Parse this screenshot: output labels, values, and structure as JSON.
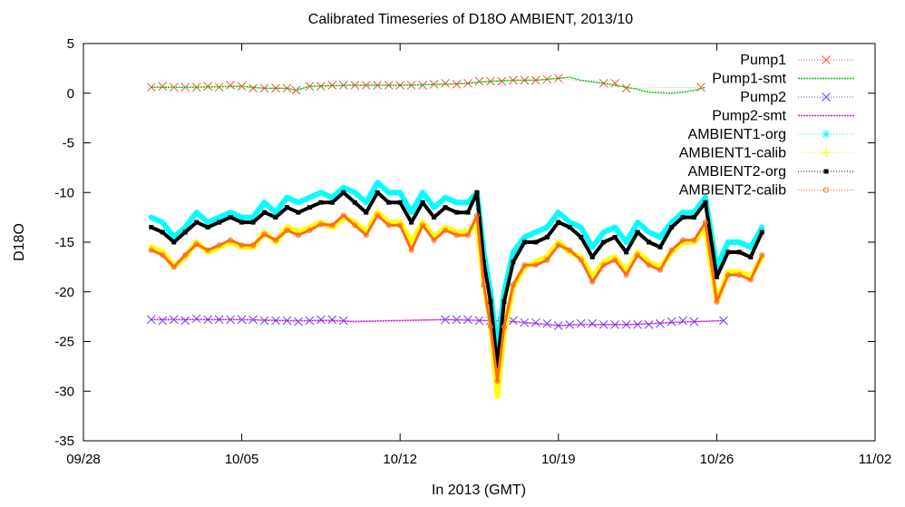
{
  "chart_data": {
    "type": "line",
    "title": "Calibrated Timeseries of D18O AMBIENT, 2013/10",
    "xlabel": "In 2013 (GMT)",
    "ylabel": "D18O",
    "xlim": [
      "2013-09-28",
      "2013-11-02"
    ],
    "ylim": [
      -35,
      5
    ],
    "x_ticks": [
      "09/28",
      "10/05",
      "10/12",
      "10/19",
      "10/26",
      "11/02"
    ],
    "y_ticks": [
      -35,
      -30,
      -25,
      -20,
      -15,
      -10,
      -5,
      0,
      5
    ],
    "grid": false,
    "legend_position": "top-right",
    "series": [
      {
        "name": "Pump1",
        "color": "#ff4a3a",
        "marker": "x",
        "x": [
          "2013-10-01",
          "2013-10-01.5",
          "2013-10-02",
          "2013-10-02.5",
          "2013-10-03",
          "2013-10-03.5",
          "2013-10-04",
          "2013-10-04.5",
          "2013-10-05",
          "2013-10-05.5",
          "2013-10-06",
          "2013-10-06.5",
          "2013-10-07",
          "2013-10-07.4",
          "2013-10-08",
          "2013-10-08.5",
          "2013-10-09",
          "2013-10-09.5",
          "2013-10-10",
          "2013-10-10.5",
          "2013-10-11",
          "2013-10-11.5",
          "2013-10-12",
          "2013-10-12.5",
          "2013-10-13",
          "2013-10-13.5",
          "2013-10-14",
          "2013-10-14.5",
          "2013-10-15",
          "2013-10-15.5",
          "2013-10-16",
          "2013-10-16.5",
          "2013-10-17",
          "2013-10-17.5",
          "2013-10-18",
          "2013-10-18.5",
          "2013-10-19",
          "2013-10-21",
          "2013-10-21.5",
          "2013-10-22",
          "2013-10-25.3"
        ],
        "values": [
          0.6,
          0.7,
          0.6,
          0.6,
          0.6,
          0.7,
          0.6,
          0.8,
          0.7,
          0.5,
          0.5,
          0.5,
          0.5,
          0.3,
          0.7,
          0.7,
          0.8,
          0.8,
          0.8,
          0.8,
          0.8,
          0.8,
          0.8,
          0.8,
          0.8,
          0.9,
          1.0,
          0.9,
          1.0,
          1.2,
          1.2,
          1.2,
          1.3,
          1.3,
          1.3,
          1.4,
          1.5,
          1.0,
          1.0,
          0.5,
          0.6
        ]
      },
      {
        "name": "Pump1-smt",
        "color": "#00c800",
        "marker": "none",
        "x": [
          "2013-10-01",
          "2013-10-03",
          "2013-10-05",
          "2013-10-06",
          "2013-10-07",
          "2013-10-07.4",
          "2013-10-08",
          "2013-10-10",
          "2013-10-12",
          "2013-10-14",
          "2013-10-15",
          "2013-10-16",
          "2013-10-17",
          "2013-10-18",
          "2013-10-19",
          "2013-10-19.5",
          "2013-10-20",
          "2013-10-21",
          "2013-10-22",
          "2013-10-22.5",
          "2013-10-23",
          "2013-10-24",
          "2013-10-24.5",
          "2013-10-25",
          "2013-10-25.5"
        ],
        "values": [
          0.6,
          0.6,
          0.7,
          0.5,
          0.5,
          0.3,
          0.7,
          0.8,
          0.8,
          0.9,
          1.0,
          1.2,
          1.3,
          1.3,
          1.5,
          1.6,
          1.3,
          1.0,
          0.6,
          0.4,
          0.1,
          0.0,
          0.1,
          0.3,
          0.6
        ]
      },
      {
        "name": "Pump2",
        "color": "#4d4dff",
        "marker": "x",
        "x": [
          "2013-10-01",
          "2013-10-01.5",
          "2013-10-02",
          "2013-10-02.5",
          "2013-10-03",
          "2013-10-03.5",
          "2013-10-04",
          "2013-10-04.5",
          "2013-10-05",
          "2013-10-05.5",
          "2013-10-06",
          "2013-10-06.5",
          "2013-10-07",
          "2013-10-07.5",
          "2013-10-08",
          "2013-10-08.5",
          "2013-10-09",
          "2013-10-09.5",
          "2013-10-14",
          "2013-10-14.5",
          "2013-10-15",
          "2013-10-15.5",
          "2013-10-16",
          "2013-10-16.5",
          "2013-10-17",
          "2013-10-17.5",
          "2013-10-18",
          "2013-10-18.5",
          "2013-10-19",
          "2013-10-19.5",
          "2013-10-20",
          "2013-10-20.5",
          "2013-10-21",
          "2013-10-21.5",
          "2013-10-22",
          "2013-10-22.5",
          "2013-10-23",
          "2013-10-23.5",
          "2013-10-24",
          "2013-10-24.5",
          "2013-10-25",
          "2013-10-26.3"
        ],
        "values": [
          -22.8,
          -22.9,
          -22.8,
          -22.9,
          -22.7,
          -22.8,
          -22.8,
          -22.8,
          -22.8,
          -22.8,
          -22.9,
          -22.9,
          -22.9,
          -23.0,
          -22.9,
          -22.8,
          -22.8,
          -22.9,
          -22.8,
          -22.8,
          -22.8,
          -22.9,
          -22.9,
          -23.0,
          -22.9,
          -23.1,
          -23.1,
          -23.2,
          -23.4,
          -23.3,
          -23.2,
          -23.2,
          -23.3,
          -23.3,
          -23.3,
          -23.3,
          -23.3,
          -23.2,
          -23.0,
          -22.9,
          -23.0,
          -22.9
        ]
      },
      {
        "name": "Pump2-smt",
        "color": "#e600e6",
        "marker": "none",
        "x": [
          "2013-10-01",
          "2013-10-03",
          "2013-10-05",
          "2013-10-07",
          "2013-10-09",
          "2013-10-10",
          "2013-10-12",
          "2013-10-14",
          "2013-10-16",
          "2013-10-17",
          "2013-10-18",
          "2013-10-19",
          "2013-10-20",
          "2013-10-22",
          "2013-10-24",
          "2013-10-25",
          "2013-10-26.3"
        ],
        "values": [
          -22.8,
          -22.8,
          -22.8,
          -22.9,
          -22.9,
          -23.0,
          -22.9,
          -22.8,
          -22.9,
          -23.0,
          -23.2,
          -23.4,
          -23.3,
          -23.3,
          -23.1,
          -23.0,
          -22.9
        ]
      },
      {
        "name": "AMBIENT1-org",
        "color": "#00ffff",
        "marker": "star",
        "x": [
          "2013-10-01",
          "2013-10-01.5",
          "2013-10-02",
          "2013-10-02.5",
          "2013-10-03",
          "2013-10-03.5",
          "2013-10-04",
          "2013-10-04.5",
          "2013-10-05",
          "2013-10-05.5",
          "2013-10-06",
          "2013-10-06.5",
          "2013-10-07",
          "2013-10-07.5",
          "2013-10-08",
          "2013-10-08.5",
          "2013-10-09",
          "2013-10-09.5",
          "2013-10-10",
          "2013-10-10.5",
          "2013-10-11",
          "2013-10-11.5",
          "2013-10-12",
          "2013-10-12.5",
          "2013-10-13",
          "2013-10-13.5",
          "2013-10-14",
          "2013-10-14.5",
          "2013-10-15",
          "2013-10-15.4",
          "2013-10-15.7",
          "2013-10-16",
          "2013-10-16.3",
          "2013-10-16.6",
          "2013-10-17",
          "2013-10-17.5",
          "2013-10-18",
          "2013-10-18.5",
          "2013-10-19",
          "2013-10-19.5",
          "2013-10-20",
          "2013-10-20.5",
          "2013-10-21",
          "2013-10-21.5",
          "2013-10-22",
          "2013-10-22.5",
          "2013-10-23",
          "2013-10-23.5",
          "2013-10-24",
          "2013-10-24.5",
          "2013-10-25",
          "2013-10-25.5",
          "2013-10-26",
          "2013-10-26.5",
          "2013-10-27",
          "2013-10-27.5",
          "2013-10-28"
        ],
        "values": [
          -12.5,
          -13.0,
          -14.5,
          -13.5,
          -12.0,
          -13.0,
          -12.5,
          -12.0,
          -12.5,
          -12.5,
          -11.0,
          -12.0,
          -10.5,
          -11.0,
          -10.5,
          -10.0,
          -10.5,
          -9.5,
          -10.0,
          -11.0,
          -9.0,
          -10.0,
          -10.0,
          -12.0,
          -10.0,
          -11.5,
          -10.5,
          -11.0,
          -11.0,
          -10.0,
          -16.0,
          -20.0,
          -26.0,
          -20.0,
          -16.0,
          -14.5,
          -14.0,
          -13.5,
          -12.0,
          -13.0,
          -13.5,
          -15.5,
          -14.0,
          -13.5,
          -15.0,
          -13.0,
          -14.0,
          -14.5,
          -13.0,
          -12.0,
          -12.0,
          -10.5,
          -17.5,
          -15.0,
          -15.0,
          -15.5,
          -13.5
        ]
      },
      {
        "name": "AMBIENT1-calib",
        "color": "#ffff00",
        "marker": "plus",
        "x": [
          "2013-10-01",
          "2013-10-01.5",
          "2013-10-02",
          "2013-10-02.5",
          "2013-10-03",
          "2013-10-03.5",
          "2013-10-04",
          "2013-10-04.5",
          "2013-10-05",
          "2013-10-05.5",
          "2013-10-06",
          "2013-10-06.5",
          "2013-10-07",
          "2013-10-07.5",
          "2013-10-08",
          "2013-10-08.5",
          "2013-10-09",
          "2013-10-09.5",
          "2013-10-10",
          "2013-10-10.5",
          "2013-10-11",
          "2013-10-11.5",
          "2013-10-12",
          "2013-10-12.5",
          "2013-10-13",
          "2013-10-13.5",
          "2013-10-14",
          "2013-10-14.5",
          "2013-10-15",
          "2013-10-15.4",
          "2013-10-15.7",
          "2013-10-16",
          "2013-10-16.3",
          "2013-10-16.6",
          "2013-10-17",
          "2013-10-17.5",
          "2013-10-18",
          "2013-10-18.5",
          "2013-10-19",
          "2013-10-19.5",
          "2013-10-20",
          "2013-10-20.5",
          "2013-10-21",
          "2013-10-21.5",
          "2013-10-22",
          "2013-10-22.5",
          "2013-10-23",
          "2013-10-23.5",
          "2013-10-24",
          "2013-10-24.5",
          "2013-10-25",
          "2013-10-25.5",
          "2013-10-26",
          "2013-10-26.5",
          "2013-10-27",
          "2013-10-27.5",
          "2013-10-28"
        ],
        "values": [
          -15.5,
          -16.0,
          -17.5,
          -16.5,
          -15.0,
          -16.0,
          -15.5,
          -15.0,
          -15.5,
          -15.5,
          -14.0,
          -15.0,
          -13.5,
          -14.0,
          -13.5,
          -13.0,
          -13.5,
          -12.5,
          -13.0,
          -14.0,
          -12.0,
          -13.0,
          -13.0,
          -15.0,
          -13.0,
          -14.5,
          -13.5,
          -14.0,
          -14.0,
          -13.0,
          -19.0,
          -23.0,
          -30.5,
          -24.0,
          -19.5,
          -17.5,
          -17.0,
          -16.5,
          -15.0,
          -16.0,
          -16.5,
          -18.5,
          -17.0,
          -16.5,
          -18.0,
          -16.0,
          -17.0,
          -17.5,
          -16.0,
          -15.0,
          -15.0,
          -13.5,
          -21.0,
          -18.0,
          -18.0,
          -18.5,
          -16.5
        ]
      },
      {
        "name": "AMBIENT2-org",
        "color": "#000000",
        "marker": "square",
        "x": [
          "2013-10-01",
          "2013-10-01.5",
          "2013-10-02",
          "2013-10-02.5",
          "2013-10-03",
          "2013-10-03.5",
          "2013-10-04",
          "2013-10-04.5",
          "2013-10-05",
          "2013-10-05.5",
          "2013-10-06",
          "2013-10-06.5",
          "2013-10-07",
          "2013-10-07.5",
          "2013-10-08",
          "2013-10-08.5",
          "2013-10-09",
          "2013-10-09.5",
          "2013-10-10",
          "2013-10-10.5",
          "2013-10-11",
          "2013-10-11.5",
          "2013-10-12",
          "2013-10-12.5",
          "2013-10-13",
          "2013-10-13.5",
          "2013-10-14",
          "2013-10-14.5",
          "2013-10-15",
          "2013-10-15.4",
          "2013-10-15.7",
          "2013-10-16",
          "2013-10-16.3",
          "2013-10-16.6",
          "2013-10-17",
          "2013-10-17.5",
          "2013-10-18",
          "2013-10-18.5",
          "2013-10-19",
          "2013-10-19.5",
          "2013-10-20",
          "2013-10-20.5",
          "2013-10-21",
          "2013-10-21.5",
          "2013-10-22",
          "2013-10-22.5",
          "2013-10-23",
          "2013-10-23.5",
          "2013-10-24",
          "2013-10-24.5",
          "2013-10-25",
          "2013-10-25.5",
          "2013-10-26",
          "2013-10-26.5",
          "2013-10-27",
          "2013-10-27.5",
          "2013-10-28"
        ],
        "values": [
          -13.5,
          -14.0,
          -15.0,
          -14.0,
          -13.0,
          -13.5,
          -13.0,
          -12.5,
          -13.0,
          -13.0,
          -12.0,
          -12.5,
          -11.5,
          -12.0,
          -11.5,
          -11.0,
          -11.0,
          -10.0,
          -11.0,
          -12.0,
          -10.0,
          -11.0,
          -11.0,
          -13.0,
          -11.0,
          -12.5,
          -11.5,
          -12.0,
          -12.0,
          -10.0,
          -17.0,
          -21.0,
          -27.5,
          -21.0,
          -17.0,
          -15.0,
          -15.0,
          -14.5,
          -13.0,
          -13.5,
          -14.5,
          -16.5,
          -15.0,
          -14.5,
          -16.0,
          -14.0,
          -15.0,
          -15.5,
          -13.5,
          -12.5,
          -12.5,
          -11.0,
          -18.5,
          -16.0,
          -16.0,
          -16.5,
          -14.0
        ]
      },
      {
        "name": "AMBIENT2-calib",
        "color": "#ff6a1a",
        "marker": "circle",
        "x": [
          "2013-10-01",
          "2013-10-01.5",
          "2013-10-02",
          "2013-10-02.5",
          "2013-10-03",
          "2013-10-03.5",
          "2013-10-04",
          "2013-10-04.5",
          "2013-10-05",
          "2013-10-05.5",
          "2013-10-06",
          "2013-10-06.5",
          "2013-10-07",
          "2013-10-07.5",
          "2013-10-08",
          "2013-10-08.5",
          "2013-10-09",
          "2013-10-09.5",
          "2013-10-10",
          "2013-10-10.5",
          "2013-10-11",
          "2013-10-11.5",
          "2013-10-12",
          "2013-10-12.5",
          "2013-10-13",
          "2013-10-13.5",
          "2013-10-14",
          "2013-10-14.5",
          "2013-10-15",
          "2013-10-15.4",
          "2013-10-15.7",
          "2013-10-16",
          "2013-10-16.3",
          "2013-10-16.6",
          "2013-10-17",
          "2013-10-17.5",
          "2013-10-18",
          "2013-10-18.5",
          "2013-10-19",
          "2013-10-19.5",
          "2013-10-20",
          "2013-10-20.5",
          "2013-10-21",
          "2013-10-21.5",
          "2013-10-22",
          "2013-10-22.5",
          "2013-10-23",
          "2013-10-23.5",
          "2013-10-24",
          "2013-10-24.5",
          "2013-10-25",
          "2013-10-25.5",
          "2013-10-26",
          "2013-10-26.5",
          "2013-10-27",
          "2013-10-27.5",
          "2013-10-28"
        ],
        "values": [
          -15.8,
          -16.3,
          -17.5,
          -16.3,
          -15.2,
          -15.8,
          -15.3,
          -14.8,
          -15.3,
          -15.3,
          -14.2,
          -14.8,
          -13.8,
          -14.3,
          -13.8,
          -13.2,
          -13.3,
          -12.3,
          -13.3,
          -14.3,
          -12.3,
          -13.3,
          -13.3,
          -15.8,
          -13.3,
          -14.8,
          -13.8,
          -14.3,
          -14.3,
          -12.3,
          -19.3,
          -23.5,
          -29.0,
          -23.5,
          -19.3,
          -17.3,
          -17.3,
          -16.8,
          -15.3,
          -15.8,
          -16.8,
          -19.0,
          -17.3,
          -16.8,
          -18.3,
          -16.3,
          -17.3,
          -17.8,
          -15.8,
          -14.8,
          -14.8,
          -13.0,
          -21.0,
          -18.3,
          -18.3,
          -18.8,
          -16.3
        ]
      }
    ]
  }
}
